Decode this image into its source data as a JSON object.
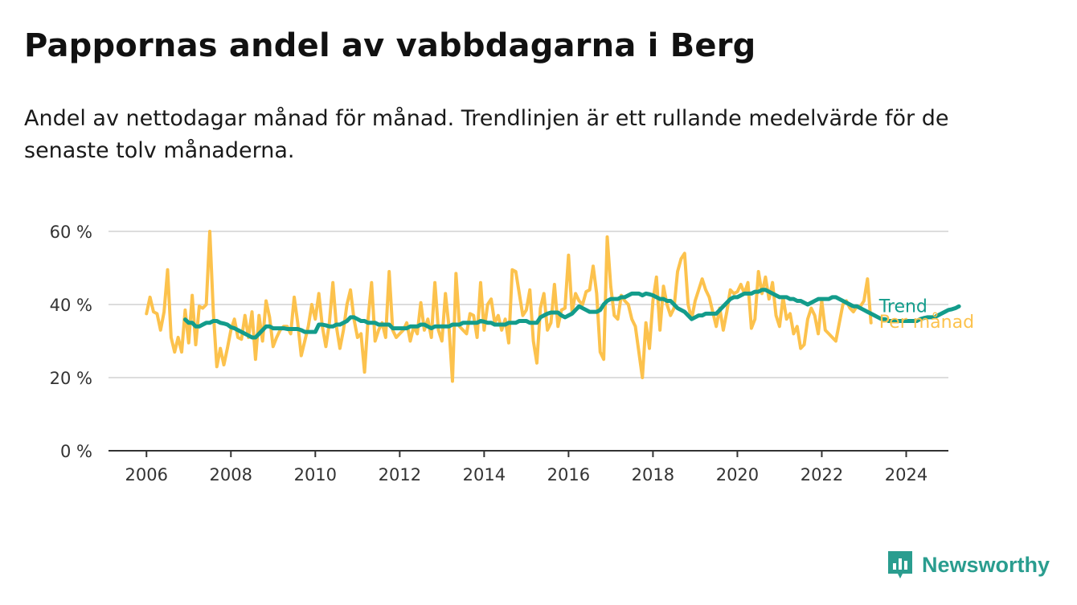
{
  "title": "Pappornas andel av vabbdagarna i Berg",
  "subtitle": "Andel av nettodagar månad för månad. Trendlinjen är ett rullande medelvärde för de senaste tolv månaderna.",
  "brand": {
    "name": "Newsworthy",
    "icon": "newsworthy-logo-icon"
  },
  "colors": {
    "monthly": "#fcc24d",
    "trend": "#139c8b",
    "grid": "#dddddd",
    "axis": "#333333"
  },
  "chart_data": {
    "type": "line",
    "title": "Pappornas andel av vabbdagarna i Berg",
    "xlabel": "",
    "ylabel": "",
    "x_start": 2006.0,
    "x_step": 0.08333,
    "xlim": [
      2005.1,
      2025.0
    ],
    "ylim": [
      0,
      60
    ],
    "y_unit": "%",
    "y_ticks": [
      0,
      20,
      40,
      60
    ],
    "y_tick_labels": [
      "0 %",
      "20 %",
      "40 %",
      "60 %"
    ],
    "x_ticks": [
      2006,
      2008,
      2010,
      2012,
      2014,
      2016,
      2018,
      2020,
      2022,
      2024
    ],
    "x_tick_labels": [
      "2006",
      "2008",
      "2010",
      "2012",
      "2014",
      "2016",
      "2018",
      "2020",
      "2022",
      "2024"
    ],
    "grid": true,
    "series": [
      {
        "name": "Per månad",
        "values": [
          37.5,
          42,
          38,
          37.5,
          33,
          38,
          49.5,
          31,
          27,
          31,
          27,
          38.5,
          29.5,
          42.5,
          29,
          39.5,
          39,
          40,
          60,
          38,
          23,
          28,
          23.5,
          28,
          33,
          36,
          31,
          30.5,
          37,
          31,
          38,
          25,
          37,
          30,
          41,
          36.5,
          28.5,
          31,
          33,
          34,
          34,
          32,
          42,
          35,
          26,
          30,
          34,
          40,
          36,
          43,
          34,
          28.5,
          35,
          46,
          34,
          28,
          33,
          40,
          44,
          36,
          31,
          32,
          21.5,
          36,
          46,
          30,
          33,
          35,
          31,
          49,
          33,
          31,
          32,
          33,
          35,
          30,
          34,
          32,
          40.5,
          33,
          36,
          31,
          46,
          33,
          30,
          43,
          34,
          19,
          48.5,
          34,
          33,
          32,
          37.5,
          37,
          31,
          46,
          33,
          40,
          41.5,
          35,
          37,
          33,
          36,
          29.5,
          49.5,
          49,
          43,
          37,
          38.5,
          44,
          30,
          24,
          39,
          43,
          33,
          35,
          45.5,
          34,
          38.5,
          39,
          53.5,
          38,
          43,
          41,
          40,
          43.5,
          44,
          50.5,
          43,
          27,
          25,
          58.5,
          45,
          37,
          36,
          42.5,
          41,
          40,
          36,
          34,
          27,
          20,
          35,
          28,
          41,
          47.5,
          33,
          45,
          40,
          37,
          39,
          49,
          52.5,
          54,
          40,
          36,
          41,
          44,
          47,
          44,
          42,
          38,
          34,
          39,
          33,
          38,
          44,
          43,
          43.5,
          45.5,
          43,
          46,
          33.5,
          36,
          49,
          43,
          47.5,
          41.5,
          46,
          37,
          34,
          42,
          36,
          37.5,
          32,
          34,
          28,
          29,
          36,
          39,
          37,
          32,
          41,
          33,
          32,
          31,
          30,
          35,
          40,
          41,
          39,
          38,
          39.5,
          39.5,
          41,
          47,
          35
        ]
      },
      {
        "name": "Trend",
        "x_start": 2006.917,
        "values": [
          35.9,
          35,
          35,
          34,
          34,
          34.5,
          35,
          35,
          35.5,
          35.5,
          35,
          34.8,
          34.5,
          33.8,
          33.5,
          33,
          32.5,
          32,
          31.5,
          31,
          31,
          32,
          33,
          34,
          34,
          33.5,
          33.5,
          33.5,
          33.5,
          33.3,
          33.3,
          33.3,
          33.3,
          33,
          32.5,
          32.5,
          32.5,
          32.5,
          34.5,
          34.5,
          34.3,
          34,
          34,
          34.5,
          34.5,
          35,
          35.5,
          36.5,
          36.5,
          36,
          35.5,
          35.5,
          35,
          35,
          35,
          34.5,
          34.5,
          34.5,
          34.5,
          33.5,
          33.5,
          33.5,
          33.5,
          33.5,
          34,
          34,
          34,
          34.5,
          34.5,
          34,
          33.5,
          34,
          34,
          34,
          34,
          34,
          34.5,
          34.5,
          34.5,
          35,
          35,
          35,
          35,
          35,
          35.5,
          35.3,
          35,
          35,
          34.5,
          34.5,
          34.5,
          34.5,
          35,
          35,
          35,
          35.5,
          35.5,
          35.5,
          35,
          35,
          35,
          36.5,
          37,
          37.5,
          37.8,
          37.8,
          37.8,
          37,
          36.5,
          37,
          37.5,
          38.5,
          39.5,
          39,
          38.5,
          38,
          38,
          38,
          38.5,
          40,
          41,
          41.5,
          41.5,
          41.5,
          42,
          42,
          42.5,
          43,
          43,
          43,
          42.5,
          43,
          42.8,
          42.5,
          42,
          41.5,
          41.5,
          41,
          41,
          40,
          39,
          38.5,
          38,
          37,
          36,
          36.5,
          37,
          37,
          37.5,
          37.5,
          37.5,
          37.5,
          38.5,
          39.5,
          40.5,
          41.5,
          42,
          42,
          42.5,
          43,
          43,
          43,
          43.5,
          43.5,
          44,
          44,
          43.5,
          43,
          42.5,
          42,
          42,
          42,
          41.5,
          41.5,
          41,
          41,
          40.5,
          40,
          40.5,
          41,
          41.5,
          41.5,
          41.5,
          41.5,
          42,
          42,
          41.5,
          41,
          40.5,
          40,
          39.5,
          39.5,
          39,
          38.5,
          38,
          37.5,
          37,
          36.5,
          36,
          36,
          35.5,
          35.5,
          35.5,
          35.5,
          35.5,
          35.5,
          35.5,
          35.5,
          35.5,
          36,
          36.3,
          36.5,
          36.5,
          36.5,
          37,
          37.5,
          38,
          38.5,
          38.7,
          39,
          39.5
        ]
      }
    ]
  }
}
